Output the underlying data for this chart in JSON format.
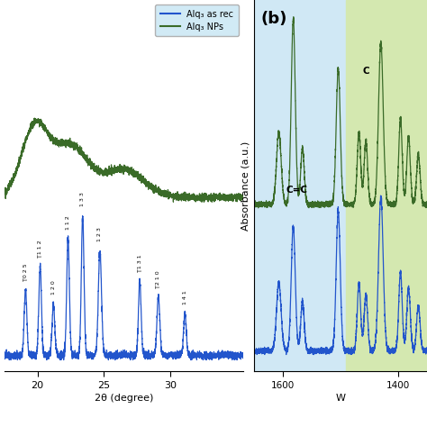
{
  "legend_labels": [
    "Alq₃ as rec",
    "Alq₃ NPs"
  ],
  "xlabel_left": "2θ (degree)",
  "ylabel_right": "Absorbance (a.u.)",
  "blue_color": "#2255cc",
  "green_color": "#3a6b28",
  "bg_right_blue": "#c8dff0",
  "bg_right_green": "#ccdfa8",
  "xlim_left": [
    17.5,
    35.5
  ],
  "x_ticks_left": [
    20,
    25,
    30
  ],
  "annotation_cc": "C=C",
  "annotation_c": "C",
  "panel_b": "(b)"
}
